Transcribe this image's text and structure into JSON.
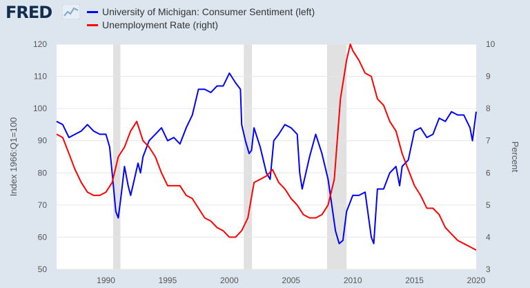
{
  "logo": {
    "text": "FRED",
    "icon": "chart-line-icon"
  },
  "chart_data": {
    "type": "line",
    "title": "",
    "legend_position": "top-left",
    "grid": true,
    "series": [
      {
        "name": "University of Michigan: Consumer Sentiment (left)",
        "axis": "left",
        "color": "#0000ff",
        "x": [
          1986.0,
          1986.5,
          1987.0,
          1987.5,
          1988.0,
          1988.5,
          1989.0,
          1989.5,
          1990.0,
          1990.3,
          1990.6,
          1990.8,
          1991.0,
          1991.2,
          1991.5,
          1991.8,
          1992.0,
          1992.3,
          1992.6,
          1992.8,
          1993.0,
          1993.5,
          1994.0,
          1994.5,
          1995.0,
          1995.5,
          1996.0,
          1996.5,
          1997.0,
          1997.5,
          1998.0,
          1998.5,
          1999.0,
          1999.5,
          2000.0,
          2000.5,
          2000.9,
          2001.0,
          2001.3,
          2001.6,
          2001.8,
          2002.0,
          2002.5,
          2003.0,
          2003.3,
          2003.6,
          2004.0,
          2004.5,
          2005.0,
          2005.5,
          2005.7,
          2005.9,
          2006.5,
          2007.0,
          2007.5,
          2008.0,
          2008.3,
          2008.6,
          2008.9,
          2009.2,
          2009.5,
          2010.0,
          2010.5,
          2011.0,
          2011.5,
          2011.7,
          2012.0,
          2012.5,
          2013.0,
          2013.5,
          2013.8,
          2014.0,
          2014.5,
          2015.0,
          2015.5,
          2016.0,
          2016.5,
          2017.0,
          2017.5,
          2018.0,
          2018.5,
          2019.0,
          2019.5,
          2019.7,
          2020.0
        ],
        "values": [
          96,
          95,
          91,
          92,
          93,
          95,
          93,
          92,
          92,
          88,
          76,
          68,
          66,
          72,
          82,
          76,
          73,
          78,
          83,
          80,
          85,
          90,
          92,
          94,
          90,
          91,
          89,
          94,
          98,
          106,
          106,
          105,
          107,
          107,
          111,
          108,
          106,
          95,
          90,
          86,
          87,
          94,
          88,
          80,
          78,
          90,
          92,
          95,
          94,
          92,
          80,
          75,
          85,
          92,
          86,
          78,
          70,
          62,
          58,
          59,
          68,
          73,
          73,
          74,
          60,
          58,
          75,
          75,
          80,
          82,
          76,
          82,
          84,
          93,
          94,
          91,
          92,
          97,
          96,
          99,
          98,
          98,
          94,
          90,
          99
        ]
      },
      {
        "name": "Unemployment Rate (right)",
        "axis": "right",
        "color": "#ff0000",
        "x": [
          1986.0,
          1986.5,
          1987.0,
          1987.5,
          1988.0,
          1988.5,
          1989.0,
          1989.5,
          1990.0,
          1990.5,
          1991.0,
          1991.5,
          1992.0,
          1992.5,
          1993.0,
          1993.5,
          1994.0,
          1994.5,
          1995.0,
          1995.5,
          1996.0,
          1996.5,
          1997.0,
          1997.5,
          1998.0,
          1998.5,
          1999.0,
          1999.5,
          2000.0,
          2000.5,
          2001.0,
          2001.5,
          2002.0,
          2002.5,
          2003.0,
          2003.5,
          2004.0,
          2004.5,
          2005.0,
          2005.5,
          2006.0,
          2006.5,
          2007.0,
          2007.5,
          2008.0,
          2008.5,
          2009.0,
          2009.5,
          2009.8,
          2010.0,
          2010.5,
          2011.0,
          2011.5,
          2012.0,
          2012.5,
          2013.0,
          2013.5,
          2014.0,
          2014.5,
          2015.0,
          2015.5,
          2016.0,
          2016.5,
          2017.0,
          2017.5,
          2018.0,
          2018.5,
          2019.0,
          2019.5,
          2020.0
        ],
        "values": [
          7.2,
          7.1,
          6.6,
          6.1,
          5.7,
          5.4,
          5.3,
          5.3,
          5.4,
          5.7,
          6.5,
          6.8,
          7.3,
          7.6,
          7.0,
          6.8,
          6.5,
          6.0,
          5.6,
          5.6,
          5.6,
          5.3,
          5.2,
          4.9,
          4.6,
          4.5,
          4.3,
          4.2,
          4.0,
          4.0,
          4.2,
          4.6,
          5.7,
          5.8,
          5.9,
          6.1,
          5.7,
          5.5,
          5.2,
          5.0,
          4.7,
          4.6,
          4.6,
          4.7,
          5.0,
          5.8,
          8.3,
          9.5,
          10.0,
          9.8,
          9.5,
          9.1,
          9.0,
          8.3,
          8.1,
          7.6,
          7.3,
          6.6,
          6.1,
          5.6,
          5.3,
          4.9,
          4.9,
          4.7,
          4.3,
          4.1,
          3.9,
          3.8,
          3.7,
          3.6
        ]
      }
    ],
    "recessions": [
      [
        1990.58,
        1991.17
      ],
      [
        2001.17,
        2001.83
      ],
      [
        2007.92,
        2009.5
      ]
    ],
    "x_ticks": [
      "1990",
      "1995",
      "2000",
      "2005",
      "2010",
      "2015",
      "2020"
    ],
    "x_tick_values": [
      1990,
      1995,
      2000,
      2005,
      2010,
      2015,
      2020
    ],
    "xlim": [
      1986.0,
      2020.0
    ],
    "y_left": {
      "label": "Index 1966:Q1=100",
      "ticks": [
        "50",
        "60",
        "70",
        "80",
        "90",
        "100",
        "110",
        "120"
      ],
      "tick_values": [
        50,
        60,
        70,
        80,
        90,
        100,
        110,
        120
      ],
      "ylim": [
        50,
        120
      ]
    },
    "y_right": {
      "label": "Percent",
      "ticks": [
        "3",
        "4",
        "5",
        "6",
        "7",
        "8",
        "9",
        "10"
      ],
      "tick_values": [
        3,
        4,
        5,
        6,
        7,
        8,
        9,
        10
      ],
      "ylim": [
        3,
        10
      ]
    },
    "colors": {
      "plot_bg": "#ffffff",
      "page_bg": "#dde6ef",
      "recession": "#e1e1e1",
      "grid": "#e6e6e6"
    }
  }
}
